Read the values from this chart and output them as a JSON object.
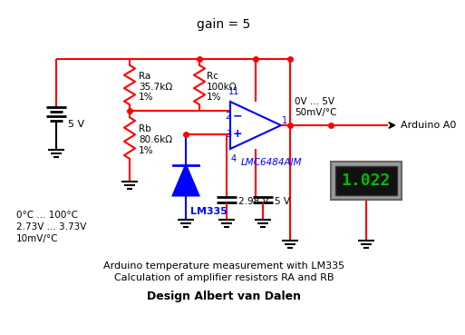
{
  "title": "gain = 5",
  "bg_color": "#ffffff",
  "red": "#ff0000",
  "blue": "#0000ff",
  "black": "#000000",
  "green": "#00bb00",
  "caption_line1": "Arduino temperature measurement with LM335",
  "caption_line2": "Calculation of amplifier resistors RA and RB",
  "caption_line3": "Design Albert van Dalen",
  "lm335_label": "LM335",
  "opamp_label": "LMC6484AIM",
  "arduino_label": "Arduino A0",
  "ra_label": "Ra\n35.7kΩ\n1%",
  "rb_label": "Rb\n80.6kΩ\n1%",
  "rc_label": "Rc\n100kΩ\n1%",
  "v5_batt": "5 V",
  "v298_label": "2.98 V",
  "v5b_label": "5 V",
  "out_label": "0V ... 5V\n50mV/°C",
  "lm335_info": "0°C ... 100°C\n2.73V ... 3.73V\n10mV/°C",
  "display_value": "1.022",
  "pin2": "2",
  "pin3": "3",
  "pin1": "1",
  "pin4": "4",
  "pin11": "11"
}
